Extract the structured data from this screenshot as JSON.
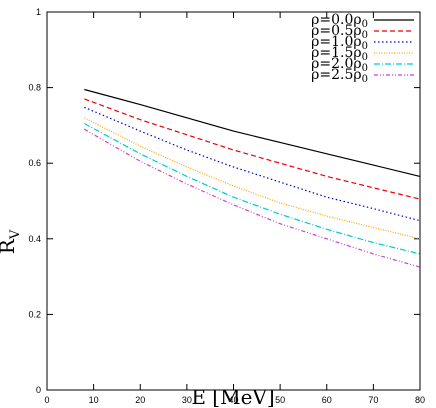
{
  "chart_data": {
    "type": "line",
    "xlabel": "E [MeV]",
    "ylabel": "R",
    "ylabel_subscript": "V",
    "xlim": [
      0,
      80
    ],
    "ylim": [
      0,
      1
    ],
    "xticks": [
      0,
      10,
      20,
      30,
      40,
      50,
      60,
      70,
      80
    ],
    "yticks": [
      0,
      0.2,
      0.4,
      0.6,
      0.8,
      1
    ],
    "xtick_labels": [
      "0",
      "10",
      "20",
      "30",
      "40",
      "50",
      "60",
      "70",
      "80"
    ],
    "ytick_labels": [
      "0",
      "0.2",
      "0.4",
      "0.6",
      "0.8",
      "1"
    ],
    "grid": false,
    "legend_position": "top-right",
    "x": [
      8,
      20,
      30,
      40,
      50,
      60,
      70,
      80
    ],
    "series": [
      {
        "name": "ρ=0.0ρ0",
        "label_main": "ρ=0.0ρ",
        "label_sub": "0",
        "color": "#000000",
        "dash": "",
        "values": [
          0.795,
          0.755,
          0.72,
          0.685,
          0.655,
          0.625,
          0.595,
          0.565
        ]
      },
      {
        "name": "ρ=0.5ρ0",
        "label_main": "ρ=0.5ρ",
        "label_sub": "0",
        "color": "#e8000b",
        "dash": "5,3",
        "values": [
          0.77,
          0.715,
          0.675,
          0.635,
          0.6,
          0.565,
          0.535,
          0.505
        ]
      },
      {
        "name": "ρ=1.0ρ0",
        "label_main": "ρ=1.0ρ",
        "label_sub": "0",
        "color": "#0000cc",
        "dash": "1.5,2.5",
        "values": [
          0.748,
          0.685,
          0.635,
          0.59,
          0.55,
          0.51,
          0.48,
          0.448
        ]
      },
      {
        "name": "ρ=1.5ρ0",
        "label_main": "ρ=1.5ρ",
        "label_sub": "0",
        "color": "#ffa500",
        "dash": "1,1.5",
        "values": [
          0.72,
          0.645,
          0.59,
          0.54,
          0.495,
          0.46,
          0.43,
          0.4
        ]
      },
      {
        "name": "ρ=2.0ρ0",
        "label_main": "ρ=2.0ρ",
        "label_sub": "0",
        "color": "#00cccc",
        "dash": "6,2,1,2",
        "values": [
          0.705,
          0.625,
          0.565,
          0.51,
          0.465,
          0.425,
          0.39,
          0.36
        ]
      },
      {
        "name": "ρ=2.5ρ0",
        "label_main": "ρ=2.5ρ",
        "label_sub": "0",
        "color": "#cc44cc",
        "dash": "4,2,1,2,1,2",
        "values": [
          0.69,
          0.605,
          0.545,
          0.49,
          0.44,
          0.4,
          0.36,
          0.325
        ]
      }
    ]
  }
}
